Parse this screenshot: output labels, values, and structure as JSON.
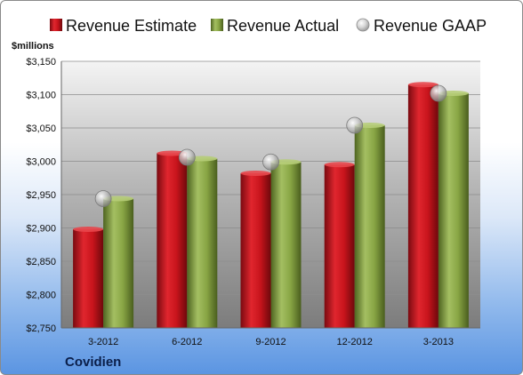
{
  "chart_data": {
    "type": "bar",
    "title": "",
    "xlabel": "",
    "ylabel": "$millions",
    "company": "Covidien",
    "categories": [
      "3-2012",
      "6-2012",
      "9-2012",
      "12-2012",
      "3-2013"
    ],
    "series": [
      {
        "name": "Revenue Estimate",
        "kind": "bar",
        "color": "#c0141c",
        "values": [
          2898,
          3012,
          2982,
          2995,
          3115
        ]
      },
      {
        "name": "Revenue Actual",
        "kind": "bar",
        "color": "#7e9a3c",
        "values": [
          2944,
          3004,
          2999,
          3054,
          3102
        ]
      },
      {
        "name": "Revenue GAAP",
        "kind": "marker",
        "color": "#b8b8b8",
        "values": [
          2944,
          3006,
          2999,
          3054,
          3102
        ]
      }
    ],
    "ylim": [
      2750,
      3150
    ],
    "yticks": [
      "$2,750",
      "$2,800",
      "$2,850",
      "$2,900",
      "$2,950",
      "$3,000",
      "$3,050",
      "$3,100",
      "$3,150"
    ],
    "ytick_values": [
      2750,
      2800,
      2850,
      2900,
      2950,
      3000,
      3050,
      3100,
      3150
    ],
    "grid": true,
    "legend_position": "top"
  }
}
